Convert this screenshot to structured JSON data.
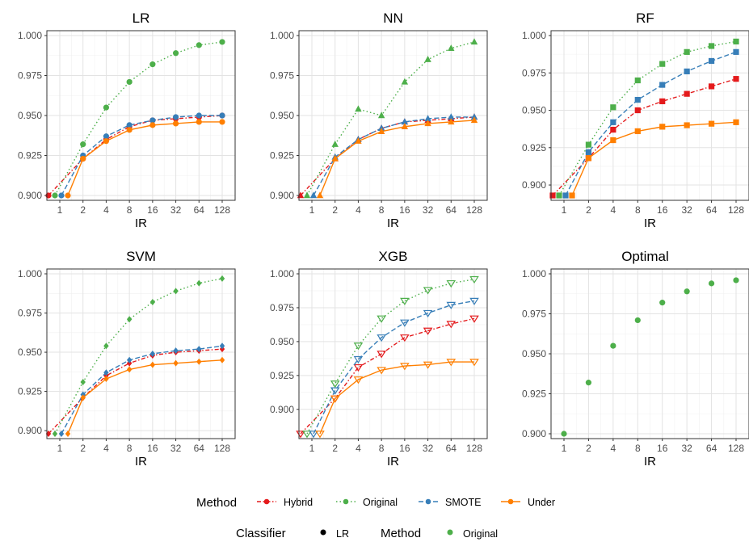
{
  "x_ticks": [
    "1",
    "2",
    "4",
    "8",
    "16",
    "32",
    "64",
    "128"
  ],
  "x_label": "IR",
  "legend": {
    "method_title": "Method",
    "methods": [
      {
        "key": "Hybrid",
        "label": "Hybrid",
        "color": "#E41A1C",
        "dash": "dotdash"
      },
      {
        "key": "Original",
        "label": "Original",
        "color": "#4DAF4A",
        "dash": "dotted"
      },
      {
        "key": "SMOTE",
        "label": "SMOTE",
        "color": "#377EB8",
        "dash": "dashed"
      },
      {
        "key": "Under",
        "label": "Under",
        "color": "#FF7F00",
        "dash": "solid"
      }
    ],
    "classifier_title": "Classifier",
    "classifier_label": "LR",
    "method2_title": "Method",
    "method2_label": "Original"
  },
  "chart_data": [
    {
      "type": "line",
      "title": "LR",
      "xlabel": "IR",
      "ylabel": "",
      "marker": "circle",
      "ylim": [
        0.9,
        1.0
      ],
      "yticks": [
        "0.900",
        "0.925",
        "0.950",
        "0.975",
        "1.000"
      ],
      "x": [
        1,
        2,
        4,
        8,
        16,
        32,
        64,
        128
      ],
      "series": [
        {
          "name": "Hybrid",
          "values": [
            0.9,
            0.923,
            0.935,
            0.943,
            0.947,
            0.948,
            0.949,
            0.95
          ]
        },
        {
          "name": "Original",
          "values": [
            0.9,
            0.932,
            0.955,
            0.971,
            0.982,
            0.989,
            0.994,
            0.996
          ]
        },
        {
          "name": "SMOTE",
          "values": [
            0.9,
            0.925,
            0.937,
            0.944,
            0.947,
            0.949,
            0.95,
            0.95
          ]
        },
        {
          "name": "Under",
          "values": [
            0.9,
            0.923,
            0.934,
            0.941,
            0.944,
            0.945,
            0.946,
            0.946
          ]
        }
      ]
    },
    {
      "type": "line",
      "title": "NN",
      "xlabel": "IR",
      "ylabel": "",
      "marker": "triangle",
      "ylim": [
        0.9,
        1.0
      ],
      "yticks": [
        "0.900",
        "0.925",
        "0.950",
        "0.975",
        "1.000"
      ],
      "x": [
        1,
        2,
        4,
        8,
        16,
        32,
        64,
        128
      ],
      "series": [
        {
          "name": "Hybrid",
          "values": [
            0.9,
            0.923,
            0.935,
            0.942,
            0.946,
            0.947,
            0.948,
            0.949
          ]
        },
        {
          "name": "Original",
          "values": [
            0.9,
            0.932,
            0.954,
            0.95,
            0.971,
            0.985,
            0.992,
            0.996
          ]
        },
        {
          "name": "SMOTE",
          "values": [
            0.9,
            0.924,
            0.935,
            0.942,
            0.946,
            0.948,
            0.949,
            0.949
          ]
        },
        {
          "name": "Under",
          "values": [
            0.9,
            0.923,
            0.934,
            0.94,
            0.943,
            0.945,
            0.946,
            0.947
          ]
        }
      ]
    },
    {
      "type": "line",
      "title": "RF",
      "xlabel": "IR",
      "ylabel": "",
      "marker": "square",
      "ylim": [
        0.893,
        1.0
      ],
      "yticks": [
        "0.900",
        "0.925",
        "0.950",
        "0.975",
        "1.000"
      ],
      "x": [
        1,
        2,
        4,
        8,
        16,
        32,
        64,
        128
      ],
      "series": [
        {
          "name": "Hybrid",
          "values": [
            0.893,
            0.918,
            0.937,
            0.95,
            0.956,
            0.961,
            0.966,
            0.971
          ]
        },
        {
          "name": "Original",
          "values": [
            0.893,
            0.927,
            0.952,
            0.97,
            0.981,
            0.989,
            0.993,
            0.996
          ]
        },
        {
          "name": "SMOTE",
          "values": [
            0.893,
            0.922,
            0.942,
            0.957,
            0.967,
            0.976,
            0.983,
            0.989
          ]
        },
        {
          "name": "Under",
          "values": [
            0.893,
            0.918,
            0.93,
            0.936,
            0.939,
            0.94,
            0.941,
            0.942
          ]
        }
      ]
    },
    {
      "type": "line",
      "title": "SVM",
      "xlabel": "IR",
      "ylabel": "",
      "marker": "diamond",
      "ylim": [
        0.898,
        1.0
      ],
      "yticks": [
        "0.900",
        "0.925",
        "0.950",
        "0.975",
        "1.000"
      ],
      "x": [
        1,
        2,
        4,
        8,
        16,
        32,
        64,
        128
      ],
      "series": [
        {
          "name": "Hybrid",
          "values": [
            0.898,
            0.921,
            0.935,
            0.943,
            0.948,
            0.95,
            0.951,
            0.952
          ]
        },
        {
          "name": "Original",
          "values": [
            0.898,
            0.931,
            0.954,
            0.971,
            0.982,
            0.989,
            0.994,
            0.997
          ]
        },
        {
          "name": "SMOTE",
          "values": [
            0.898,
            0.923,
            0.937,
            0.945,
            0.949,
            0.951,
            0.952,
            0.954
          ]
        },
        {
          "name": "Under",
          "values": [
            0.898,
            0.921,
            0.933,
            0.939,
            0.942,
            0.943,
            0.944,
            0.945
          ]
        }
      ]
    },
    {
      "type": "line",
      "title": "XGB",
      "xlabel": "IR",
      "ylabel": "",
      "marker": "triangle-down-open",
      "ylim": [
        0.882,
        1.0
      ],
      "yticks": [
        "0.900",
        "0.925",
        "0.950",
        "0.975",
        "1.000"
      ],
      "x": [
        1,
        2,
        4,
        8,
        16,
        32,
        64,
        128
      ],
      "series": [
        {
          "name": "Hybrid",
          "values": [
            0.882,
            0.908,
            0.931,
            0.941,
            0.953,
            0.958,
            0.963,
            0.967
          ]
        },
        {
          "name": "Original",
          "values": [
            0.882,
            0.919,
            0.947,
            0.967,
            0.98,
            0.988,
            0.993,
            0.996
          ]
        },
        {
          "name": "SMOTE",
          "values": [
            0.882,
            0.914,
            0.937,
            0.953,
            0.964,
            0.971,
            0.977,
            0.98
          ]
        },
        {
          "name": "Under",
          "values": [
            0.882,
            0.908,
            0.922,
            0.929,
            0.932,
            0.933,
            0.935,
            0.935
          ]
        }
      ]
    },
    {
      "type": "scatter",
      "title": "Optimal",
      "xlabel": "IR",
      "ylabel": "",
      "marker": "circle",
      "ylim": [
        0.9,
        1.0
      ],
      "yticks": [
        "0.900",
        "0.925",
        "0.950",
        "0.975",
        "1.000"
      ],
      "x": [
        1,
        2,
        4,
        8,
        16,
        32,
        64,
        128
      ],
      "series": [
        {
          "name": "Original",
          "values": [
            0.9,
            0.932,
            0.955,
            0.971,
            0.982,
            0.989,
            0.994,
            0.996
          ]
        }
      ]
    }
  ]
}
